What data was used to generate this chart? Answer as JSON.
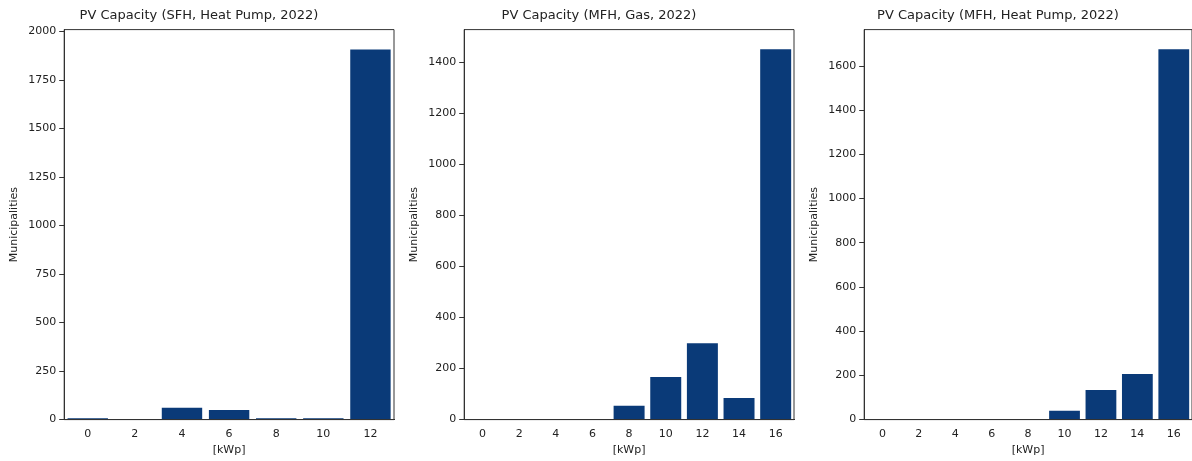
{
  "chart_data": [
    {
      "type": "bar",
      "title": "PV Capacity (SFH, Heat Pump, 2022)",
      "xlabel": "[kWp]",
      "ylabel": "Municipalities",
      "categories": [
        "0",
        "2",
        "4",
        "6",
        "8",
        "10",
        "12"
      ],
      "values": [
        12,
        4,
        66,
        55,
        12,
        12,
        1913
      ],
      "color": "#0a3a78",
      "ylim": [
        0,
        2010
      ],
      "yticks": [
        0,
        250,
        500,
        750,
        1000,
        1250,
        1500,
        1750,
        2000
      ],
      "grid": false,
      "legend": false
    },
    {
      "type": "bar",
      "title": "PV Capacity (MFH, Gas, 2022)",
      "xlabel": "[kWp]",
      "ylabel": "Municipalities",
      "categories": [
        "0",
        "2",
        "4",
        "6",
        "8",
        "10",
        "12",
        "14",
        "16"
      ],
      "values": [
        0,
        0,
        0,
        3,
        58,
        171,
        303,
        89,
        1455
      ],
      "color": "#0a3a78",
      "ylim": [
        0,
        1528
      ],
      "yticks": [
        0,
        200,
        400,
        600,
        800,
        1000,
        1200,
        1400
      ],
      "grid": false,
      "legend": false
    },
    {
      "type": "bar",
      "title": "PV Capacity (MFH, Heat Pump, 2022)",
      "xlabel": "[kWp]",
      "ylabel": "Municipalities",
      "categories": [
        "0",
        "2",
        "4",
        "6",
        "8",
        "10",
        "12",
        "14",
        "16"
      ],
      "values": [
        0,
        0,
        0,
        0,
        3,
        45,
        139,
        211,
        1681
      ],
      "color": "#0a3a78",
      "ylim": [
        0,
        1765
      ],
      "yticks": [
        0,
        200,
        400,
        600,
        800,
        1000,
        1200,
        1400,
        1600
      ],
      "grid": false,
      "legend": false
    }
  ]
}
